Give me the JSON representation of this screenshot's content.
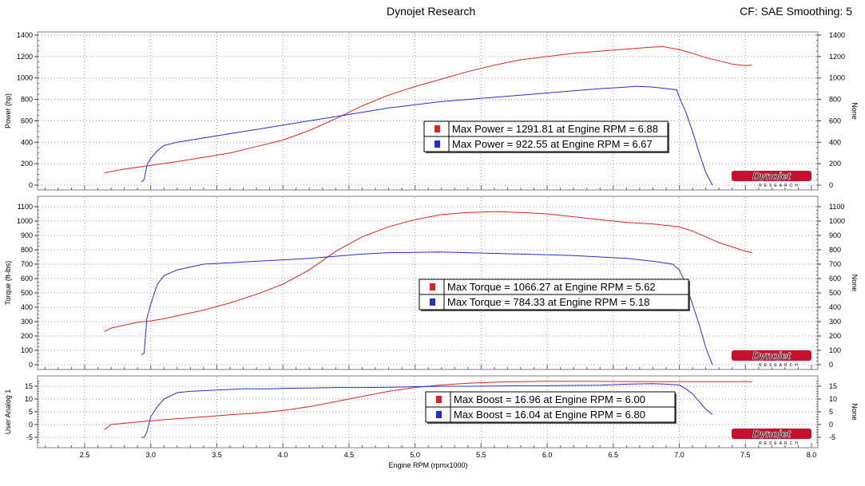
{
  "header": {
    "title": "Dynojet Research",
    "settings": "CF: SAE Smoothing: 5"
  },
  "colors": {
    "run1": "#e02020",
    "run2": "#2030d0",
    "grid": "#9a9a9a",
    "logo_red": "#c8102e"
  },
  "logo": {
    "text": "Dynojet",
    "subtext": "RESEARCH"
  },
  "x_axis": {
    "label": "Engine RPM (rpmx1000)",
    "range": [
      2.2,
      8.0
    ],
    "ticks": [
      2.5,
      3.0,
      3.5,
      4.0,
      4.5,
      5.0,
      5.5,
      6.0,
      6.5,
      7.0,
      7.5,
      8.0
    ],
    "tick_labels": [
      "2.5",
      "3.0",
      "3.5",
      "4.0",
      "4.5",
      "5.0",
      "5.5",
      "6.0",
      "6.5",
      "7.0",
      "7.5",
      "8.0"
    ]
  },
  "chart_data": [
    {
      "type": "line",
      "ylabel": "Power (hp)",
      "ylabel_right": "None",
      "ylim": [
        0,
        1400
      ],
      "yticks": [
        0,
        200,
        400,
        600,
        800,
        1000,
        1200,
        1400
      ],
      "ytick_labels": [
        "0",
        "200",
        "400",
        "600",
        "800",
        "1000",
        "1200",
        "1400"
      ],
      "legend": [
        "Max Power = 1291.81 at Engine RPM = 6.88",
        "Max Power = 922.55 at Engine RPM = 6.67"
      ],
      "series": [
        {
          "color_key": "run1",
          "x": [
            2.65,
            2.8,
            3.0,
            3.2,
            3.4,
            3.6,
            3.8,
            4.0,
            4.2,
            4.4,
            4.6,
            4.8,
            5.0,
            5.2,
            5.4,
            5.6,
            5.8,
            6.0,
            6.2,
            6.4,
            6.6,
            6.8,
            6.88,
            7.0,
            7.1,
            7.2,
            7.3,
            7.4,
            7.5,
            7.55
          ],
          "y": [
            115,
            150,
            185,
            220,
            260,
            300,
            360,
            420,
            510,
            620,
            740,
            840,
            920,
            990,
            1060,
            1120,
            1170,
            1200,
            1230,
            1250,
            1270,
            1288,
            1291.81,
            1265,
            1230,
            1190,
            1160,
            1130,
            1115,
            1120
          ]
        },
        {
          "color_key": "run2",
          "x": [
            2.93,
            2.95,
            2.97,
            3.0,
            3.05,
            3.1,
            3.2,
            3.4,
            3.6,
            3.8,
            4.0,
            4.2,
            4.4,
            4.6,
            4.8,
            5.0,
            5.2,
            5.4,
            5.6,
            5.8,
            6.0,
            6.2,
            6.4,
            6.6,
            6.67,
            6.8,
            6.98,
            7.0,
            7.05,
            7.1,
            7.15,
            7.2,
            7.25
          ],
          "y": [
            30,
            50,
            180,
            250,
            320,
            370,
            400,
            440,
            480,
            520,
            560,
            600,
            640,
            680,
            720,
            750,
            780,
            800,
            820,
            840,
            860,
            880,
            900,
            915,
            922.55,
            915,
            890,
            820,
            680,
            500,
            300,
            120,
            0
          ]
        }
      ]
    },
    {
      "type": "line",
      "ylabel": "Torque (ft-lbs)",
      "ylabel_right": "None",
      "ylim": [
        0,
        1100
      ],
      "yticks": [
        0,
        100,
        200,
        300,
        400,
        500,
        600,
        700,
        800,
        900,
        1000,
        1100
      ],
      "ytick_labels": [
        "0",
        "100",
        "200",
        "300",
        "400",
        "500",
        "600",
        "700",
        "800",
        "900",
        "1000",
        "1100"
      ],
      "legend": [
        "Max Torque = 1066.27 at Engine RPM = 5.62",
        "Max Torque = 784.33 at Engine RPM = 5.18"
      ],
      "series": [
        {
          "color_key": "run1",
          "x": [
            2.65,
            2.7,
            2.8,
            2.9,
            3.0,
            3.1,
            3.2,
            3.4,
            3.6,
            3.8,
            4.0,
            4.2,
            4.4,
            4.6,
            4.8,
            5.0,
            5.2,
            5.4,
            5.62,
            5.8,
            6.0,
            6.2,
            6.4,
            6.6,
            6.8,
            7.0,
            7.1,
            7.2,
            7.3,
            7.4,
            7.5,
            7.55
          ],
          "y": [
            230,
            255,
            275,
            295,
            305,
            320,
            340,
            380,
            430,
            490,
            560,
            660,
            790,
            890,
            960,
            1010,
            1045,
            1060,
            1066.27,
            1060,
            1050,
            1030,
            1010,
            990,
            980,
            960,
            930,
            890,
            850,
            820,
            790,
            780
          ]
        },
        {
          "color_key": "run2",
          "x": [
            2.93,
            2.95,
            2.97,
            3.0,
            3.05,
            3.1,
            3.2,
            3.4,
            3.6,
            3.8,
            4.0,
            4.2,
            4.4,
            4.6,
            4.8,
            5.0,
            5.18,
            5.4,
            5.6,
            5.8,
            6.0,
            6.2,
            6.4,
            6.6,
            6.8,
            6.95,
            7.0,
            7.05,
            7.1,
            7.15,
            7.2,
            7.25
          ],
          "y": [
            70,
            80,
            320,
            420,
            560,
            620,
            660,
            700,
            710,
            720,
            730,
            740,
            755,
            770,
            780,
            782,
            784.33,
            780,
            775,
            770,
            765,
            760,
            750,
            740,
            720,
            700,
            660,
            560,
            420,
            280,
            120,
            0
          ]
        }
      ]
    },
    {
      "type": "line",
      "ylabel": "User Analog 1",
      "ylabel_right": "None",
      "ylim": [
        -7,
        17
      ],
      "yticks": [
        -5,
        0,
        5,
        10,
        15
      ],
      "ytick_labels": [
        "-5",
        "0",
        "5",
        "10",
        "15"
      ],
      "legend": [
        "Max Boost = 16.96 at Engine RPM = 6.00",
        "Max Boost = 16.04 at Engine RPM = 6.80"
      ],
      "series": [
        {
          "color_key": "run1",
          "x": [
            2.65,
            2.7,
            2.8,
            3.0,
            3.2,
            3.4,
            3.6,
            3.8,
            4.0,
            4.2,
            4.4,
            4.6,
            4.8,
            5.0,
            5.2,
            5.4,
            5.6,
            5.8,
            6.0,
            6.2,
            6.4,
            6.6,
            6.8,
            7.0,
            7.2,
            7.4,
            7.55
          ],
          "y": [
            -2,
            0,
            0.5,
            1.5,
            2.3,
            3,
            3.8,
            4.5,
            5.5,
            7,
            9,
            11,
            13,
            14.5,
            15.5,
            16.2,
            16.6,
            16.8,
            16.96,
            16.9,
            16.9,
            16.85,
            16.8,
            16.8,
            16.8,
            16.8,
            16.8
          ]
        },
        {
          "color_key": "run2",
          "x": [
            2.93,
            2.95,
            2.97,
            3.0,
            3.05,
            3.1,
            3.2,
            3.3,
            3.5,
            3.7,
            3.9,
            4.0,
            4.2,
            4.4,
            4.6,
            4.8,
            5.0,
            5.2,
            5.4,
            5.6,
            5.8,
            6.0,
            6.2,
            6.4,
            6.6,
            6.8,
            6.9,
            7.0,
            7.05,
            7.1,
            7.15,
            7.2,
            7.25
          ],
          "y": [
            -5,
            -5,
            -3,
            3,
            7,
            10,
            12.5,
            13,
            13.5,
            14,
            14,
            14.2,
            14.3,
            14.5,
            14.5,
            14.6,
            14.8,
            15,
            15,
            15.1,
            15.2,
            15.2,
            15.3,
            15.4,
            15.8,
            16.04,
            15.8,
            15.5,
            14,
            12,
            9,
            6,
            4
          ]
        }
      ]
    }
  ]
}
